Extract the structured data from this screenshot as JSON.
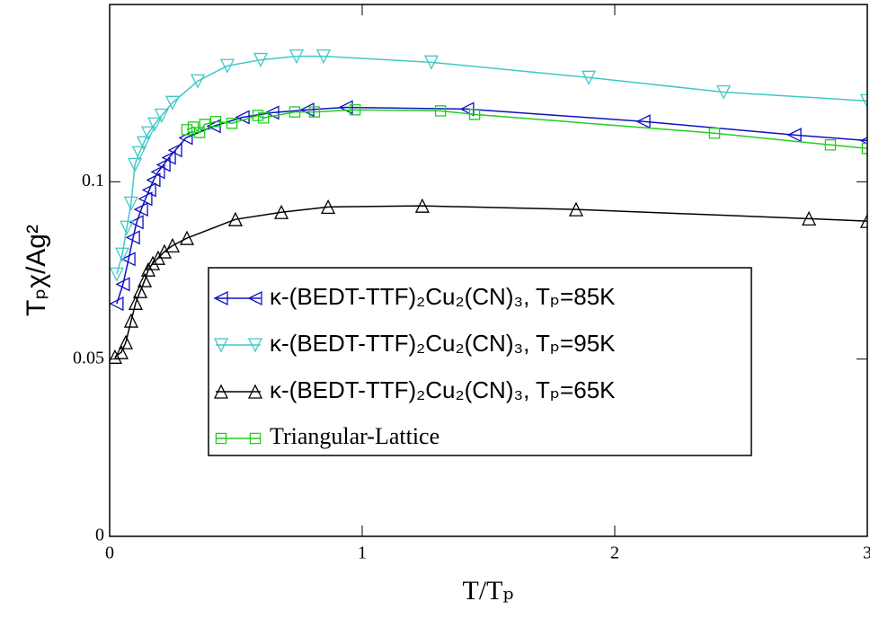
{
  "chart_data": {
    "type": "line",
    "x_label": "T/Tₚ",
    "y_label": "Tₚχ/Ag²",
    "xlim": [
      0,
      3
    ],
    "ylim": [
      0,
      0.15
    ],
    "xticks": [
      0,
      1,
      2,
      3
    ],
    "yticks": [
      0,
      0.05,
      0.1
    ],
    "legend": "center",
    "series": [
      {
        "name": "κ-(BEDT-TTF)₂Cu₂(CN)₃, Tₚ=85K",
        "color": "#1010c0",
        "marker": "triangle-left",
        "x": [
          0.028,
          0.053,
          0.075,
          0.093,
          0.107,
          0.125,
          0.142,
          0.157,
          0.174,
          0.192,
          0.214,
          0.235,
          0.26,
          0.302,
          0.413,
          0.527,
          0.644,
          0.783,
          0.936,
          1.416,
          2.114,
          2.712,
          3
        ],
        "values": [
          0.0656,
          0.0711,
          0.0782,
          0.0843,
          0.0886,
          0.0922,
          0.0952,
          0.0977,
          0.1005,
          0.1028,
          0.1048,
          0.1068,
          0.1089,
          0.1124,
          0.1157,
          0.1182,
          0.1195,
          0.1203,
          0.121,
          0.1205,
          0.117,
          0.1132,
          0.1116
        ]
      },
      {
        "name": "κ-(BEDT-TTF)₂Cu₂(CN)₃, Tₚ=95K",
        "color": "#40c8c8",
        "marker": "triangle-down",
        "x": [
          0.028,
          0.05,
          0.068,
          0.085,
          0.1,
          0.117,
          0.135,
          0.153,
          0.178,
          0.206,
          0.249,
          0.349,
          0.466,
          0.598,
          0.74,
          0.847,
          1.274,
          1.897,
          2.431,
          3
        ],
        "values": [
          0.0739,
          0.0795,
          0.0871,
          0.0939,
          0.1048,
          0.1081,
          0.1109,
          0.1137,
          0.1162,
          0.1187,
          0.1223,
          0.1284,
          0.1327,
          0.1344,
          0.1354,
          0.1354,
          0.1337,
          0.1294,
          0.1253,
          0.1228
        ]
      },
      {
        "name": "κ-(BEDT-TTF)₂Cu₂(CN)₃, Tₚ=65K",
        "color": "#000000",
        "marker": "triangle-up",
        "x": [
          0.021,
          0.046,
          0.064,
          0.085,
          0.103,
          0.121,
          0.139,
          0.153,
          0.171,
          0.192,
          0.217,
          0.249,
          0.306,
          0.498,
          0.68,
          0.865,
          1.238,
          1.847,
          2.769,
          3
        ],
        "values": [
          0.0506,
          0.0519,
          0.0547,
          0.0608,
          0.0658,
          0.0691,
          0.0722,
          0.0752,
          0.077,
          0.0785,
          0.0803,
          0.082,
          0.0841,
          0.0894,
          0.0914,
          0.0929,
          0.0932,
          0.0922,
          0.0896,
          0.0889
        ]
      },
      {
        "name": "Triangular-Lattice",
        "color": "#22cc22",
        "marker": "square",
        "x": [
          0.306,
          0.331,
          0.356,
          0.377,
          0.42,
          0.484,
          0.587,
          0.609,
          0.733,
          0.811,
          0.972,
          1.31,
          1.445,
          2.395,
          2.854,
          3
        ],
        "values": [
          0.1147,
          0.1154,
          0.1139,
          0.1162,
          0.117,
          0.1165,
          0.1187,
          0.118,
          0.1197,
          0.1197,
          0.1203,
          0.12,
          0.119,
          0.1137,
          0.1104,
          0.1094
        ]
      }
    ]
  }
}
